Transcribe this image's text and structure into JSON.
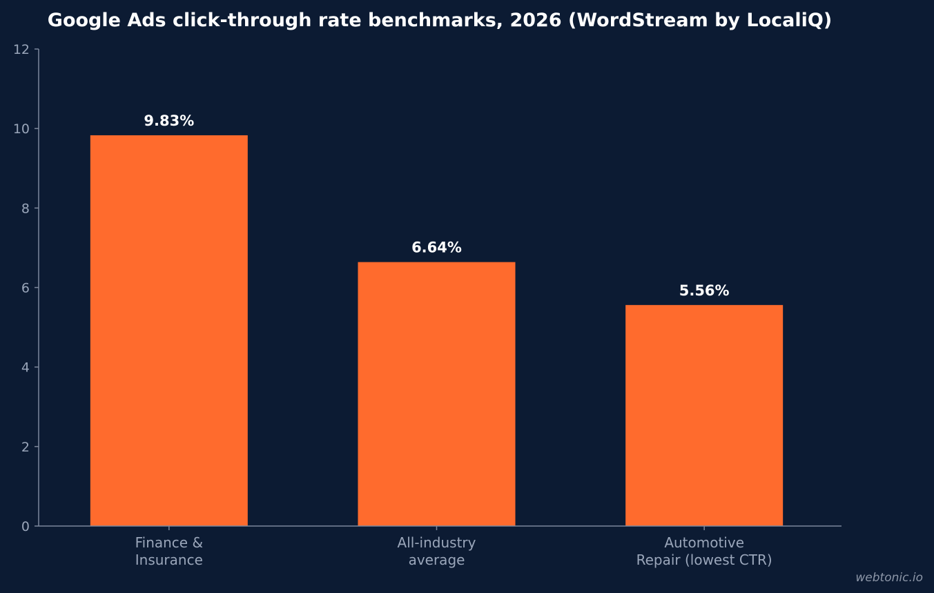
{
  "chart_data": {
    "type": "bar",
    "title": "Google Ads click-through rate benchmarks, 2026 (WordStream by LocaliQ)",
    "xlabel": "",
    "ylabel": "",
    "ylim": [
      0,
      12
    ],
    "yticks": [
      0,
      2,
      4,
      6,
      8,
      10,
      12
    ],
    "categories": [
      [
        "Finance &",
        "Insurance"
      ],
      [
        "All-industry",
        "average"
      ],
      [
        "Automotive",
        "Repair (lowest CTR)"
      ]
    ],
    "values": [
      9.83,
      6.64,
      5.56
    ],
    "data_labels": [
      "9.83%",
      "6.64%",
      "5.56%"
    ],
    "bar_color": "#ff6b2d",
    "background_color": "#0c1b33",
    "grid": false,
    "legend": "none"
  },
  "watermark": "webtonic.io"
}
